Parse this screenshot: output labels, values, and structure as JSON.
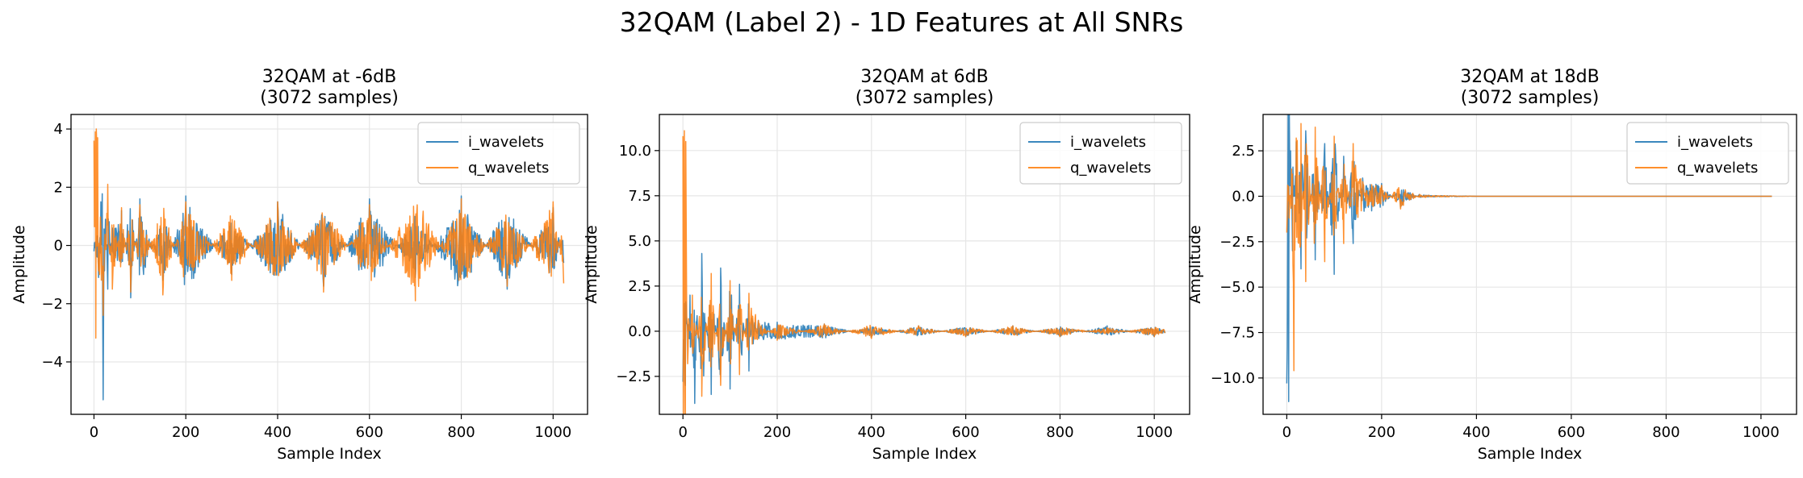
{
  "figure": {
    "suptitle": "32QAM (Label 2) - 1D Features at All SNRs"
  },
  "colors": {
    "i_wavelets": "#1f77b4",
    "q_wavelets": "#ff7f0e",
    "grid": "#e6e6e6",
    "axes": "#000000"
  },
  "chart_data": [
    {
      "type": "line",
      "title": "32QAM at -6dB\n(3072 samples)",
      "xlabel": "Sample Index",
      "ylabel": "Amplitude",
      "xlim": [
        -50,
        1075
      ],
      "ylim": [
        -5.8,
        4.5
      ],
      "xticks": [
        0,
        200,
        400,
        600,
        800,
        1000
      ],
      "yticks": [
        -4,
        -2,
        0,
        2,
        4
      ],
      "ytick_labels": [
        "−4",
        "−2",
        "0",
        "2",
        "4"
      ],
      "grid": true,
      "legend": "upper right",
      "n_points": 1024,
      "series": [
        {
          "name": "i_wavelets",
          "color": "#1f77b4",
          "x": [
            0,
            5,
            10,
            15,
            20,
            25,
            30,
            40,
            60,
            80,
            100,
            150,
            200,
            300,
            400,
            500,
            600,
            700,
            800,
            900,
            1000,
            1023
          ],
          "values": [
            -0.2,
            -0.3,
            -1.1,
            1.5,
            -5.3,
            0.9,
            -1.5,
            0.6,
            1.2,
            -1.8,
            1.6,
            -1.2,
            1.7,
            -1.0,
            1.5,
            -1.4,
            1.6,
            -1.1,
            1.7,
            -1.5,
            1.3,
            -0.6
          ]
        },
        {
          "name": "q_wavelets",
          "color": "#ff7f0e",
          "x": [
            0,
            3,
            5,
            8,
            12,
            20,
            30,
            40,
            60,
            80,
            100,
            150,
            200,
            300,
            400,
            500,
            600,
            700,
            800,
            900,
            1000,
            1023
          ],
          "values": [
            3.6,
            3.9,
            4.0,
            3.7,
            -1.0,
            -2.4,
            2.1,
            -1.5,
            1.3,
            -1.6,
            1.4,
            -1.7,
            1.5,
            -1.2,
            1.5,
            -1.6,
            1.4,
            -1.9,
            1.6,
            -1.4,
            1.5,
            -1.3
          ]
        }
      ]
    },
    {
      "type": "line",
      "title": "32QAM at 6dB\n(3072 samples)",
      "xlabel": "Sample Index",
      "ylabel": "Amplitude",
      "xlim": [
        -50,
        1075
      ],
      "ylim": [
        -4.6,
        12.0
      ],
      "xticks": [
        0,
        200,
        400,
        600,
        800,
        1000
      ],
      "yticks": [
        -2.5,
        0.0,
        2.5,
        5.0,
        7.5,
        10.0
      ],
      "ytick_labels": [
        "−2.5",
        "0.0",
        "2.5",
        "5.0",
        "7.5",
        "10.0"
      ],
      "grid": true,
      "legend": "upper right",
      "n_points": 1024,
      "series": [
        {
          "name": "i_wavelets",
          "color": "#1f77b4",
          "x": [
            0,
            5,
            15,
            25,
            40,
            60,
            80,
            100,
            120,
            140,
            160,
            200,
            300,
            400,
            500,
            600,
            700,
            800,
            900,
            1000,
            1023
          ],
          "values": [
            -2.8,
            -3.0,
            2.0,
            -4.0,
            4.3,
            -3.5,
            3.5,
            -3.2,
            2.6,
            -2.2,
            0.6,
            0.5,
            0.4,
            -0.3,
            0.3,
            -0.3,
            0.3,
            -0.3,
            0.3,
            -0.3,
            -0.1
          ]
        },
        {
          "name": "q_wavelets",
          "color": "#ff7f0e",
          "x": [
            0,
            3,
            6,
            10,
            20,
            40,
            60,
            80,
            100,
            120,
            140,
            160,
            200,
            300,
            400,
            500,
            600,
            700,
            800,
            900,
            1000,
            1023
          ],
          "values": [
            10.8,
            11.1,
            10.5,
            -1.8,
            2.0,
            -3.6,
            3.2,
            -3.0,
            2.8,
            -2.4,
            2.1,
            0.6,
            -0.5,
            0.4,
            -0.4,
            0.3,
            -0.3,
            0.3,
            -0.3,
            0.2,
            -0.3,
            -0.1
          ]
        }
      ]
    },
    {
      "type": "line",
      "title": "32QAM at 18dB\n(3072 samples)",
      "xlabel": "Sample Index",
      "ylabel": "Amplitude",
      "xlim": [
        -50,
        1075
      ],
      "ylim": [
        -12.0,
        4.5
      ],
      "xticks": [
        0,
        200,
        400,
        600,
        800,
        1000
      ],
      "yticks": [
        -10.0,
        -7.5,
        -5.0,
        -2.5,
        0.0,
        2.5
      ],
      "ytick_labels": [
        "−10.0",
        "−7.5",
        "−5.0",
        "−2.5",
        "0.0",
        "2.5"
      ],
      "grid": true,
      "legend": "upper right",
      "n_points": 1024,
      "series": [
        {
          "name": "i_wavelets",
          "color": "#1f77b4",
          "x": [
            0,
            4,
            8,
            12,
            20,
            30,
            40,
            60,
            80,
            100,
            120,
            140,
            160,
            200,
            240,
            280,
            300,
            400,
            600,
            800,
            1000,
            1023
          ],
          "values": [
            -10.3,
            -11.3,
            2.5,
            -3.0,
            3.0,
            -4.0,
            3.6,
            -3.5,
            2.9,
            -4.3,
            2.2,
            -2.6,
            1.0,
            0.7,
            -0.6,
            0.1,
            0.05,
            0.0,
            0.0,
            0.0,
            0.0,
            0.0
          ]
        },
        {
          "name": "q_wavelets",
          "color": "#ff7f0e",
          "x": [
            0,
            5,
            10,
            15,
            20,
            30,
            40,
            60,
            80,
            100,
            120,
            140,
            160,
            200,
            240,
            280,
            300,
            400,
            600,
            800,
            1000,
            1023
          ],
          "values": [
            -2.0,
            -1.2,
            1.5,
            -9.6,
            3.2,
            4.0,
            -4.7,
            3.8,
            -3.6,
            3.3,
            -2.6,
            2.9,
            0.8,
            0.6,
            -0.7,
            0.1,
            0.05,
            0.0,
            0.0,
            0.0,
            0.0,
            0.0
          ]
        }
      ]
    }
  ]
}
